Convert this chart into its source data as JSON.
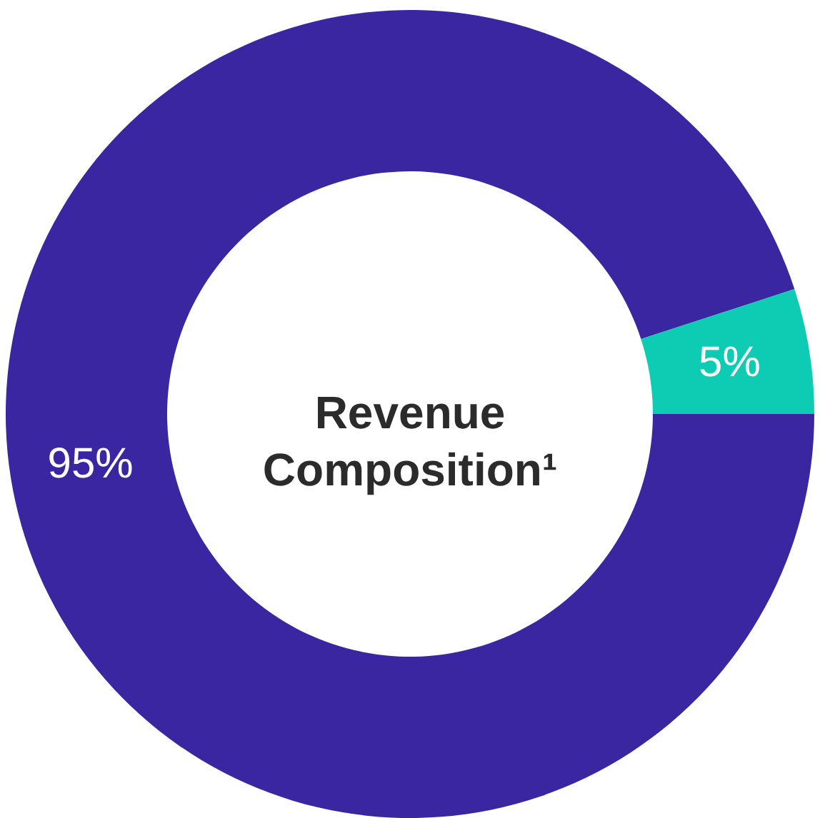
{
  "chart_data": {
    "type": "donut",
    "title": "Revenue Composition¹",
    "categories": [
      null,
      null
    ],
    "values": [
      95,
      5
    ],
    "colors": [
      "#3a26a0",
      "#0ecbb3"
    ],
    "value_labels": [
      "95%",
      "5%"
    ]
  }
}
